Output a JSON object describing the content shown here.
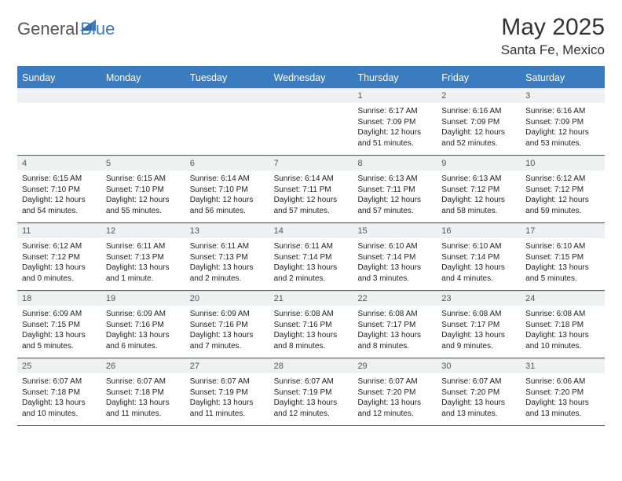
{
  "logo": {
    "text1": "General",
    "text2": "Blue"
  },
  "title": "May 2025",
  "location": "Santa Fe, Mexico",
  "colors": {
    "header_bg": "#3b7bbf",
    "header_border": "#34689e",
    "daynum_bg": "#eef0f1",
    "text": "#222222"
  },
  "dayNames": [
    "Sunday",
    "Monday",
    "Tuesday",
    "Wednesday",
    "Thursday",
    "Friday",
    "Saturday"
  ],
  "weeks": [
    [
      {
        "num": "",
        "sunrise": "",
        "sunset": "",
        "daylight": ""
      },
      {
        "num": "",
        "sunrise": "",
        "sunset": "",
        "daylight": ""
      },
      {
        "num": "",
        "sunrise": "",
        "sunset": "",
        "daylight": ""
      },
      {
        "num": "",
        "sunrise": "",
        "sunset": "",
        "daylight": ""
      },
      {
        "num": "1",
        "sunrise": "Sunrise: 6:17 AM",
        "sunset": "Sunset: 7:09 PM",
        "daylight": "Daylight: 12 hours and 51 minutes."
      },
      {
        "num": "2",
        "sunrise": "Sunrise: 6:16 AM",
        "sunset": "Sunset: 7:09 PM",
        "daylight": "Daylight: 12 hours and 52 minutes."
      },
      {
        "num": "3",
        "sunrise": "Sunrise: 6:16 AM",
        "sunset": "Sunset: 7:09 PM",
        "daylight": "Daylight: 12 hours and 53 minutes."
      }
    ],
    [
      {
        "num": "4",
        "sunrise": "Sunrise: 6:15 AM",
        "sunset": "Sunset: 7:10 PM",
        "daylight": "Daylight: 12 hours and 54 minutes."
      },
      {
        "num": "5",
        "sunrise": "Sunrise: 6:15 AM",
        "sunset": "Sunset: 7:10 PM",
        "daylight": "Daylight: 12 hours and 55 minutes."
      },
      {
        "num": "6",
        "sunrise": "Sunrise: 6:14 AM",
        "sunset": "Sunset: 7:10 PM",
        "daylight": "Daylight: 12 hours and 56 minutes."
      },
      {
        "num": "7",
        "sunrise": "Sunrise: 6:14 AM",
        "sunset": "Sunset: 7:11 PM",
        "daylight": "Daylight: 12 hours and 57 minutes."
      },
      {
        "num": "8",
        "sunrise": "Sunrise: 6:13 AM",
        "sunset": "Sunset: 7:11 PM",
        "daylight": "Daylight: 12 hours and 57 minutes."
      },
      {
        "num": "9",
        "sunrise": "Sunrise: 6:13 AM",
        "sunset": "Sunset: 7:12 PM",
        "daylight": "Daylight: 12 hours and 58 minutes."
      },
      {
        "num": "10",
        "sunrise": "Sunrise: 6:12 AM",
        "sunset": "Sunset: 7:12 PM",
        "daylight": "Daylight: 12 hours and 59 minutes."
      }
    ],
    [
      {
        "num": "11",
        "sunrise": "Sunrise: 6:12 AM",
        "sunset": "Sunset: 7:12 PM",
        "daylight": "Daylight: 13 hours and 0 minutes."
      },
      {
        "num": "12",
        "sunrise": "Sunrise: 6:11 AM",
        "sunset": "Sunset: 7:13 PM",
        "daylight": "Daylight: 13 hours and 1 minute."
      },
      {
        "num": "13",
        "sunrise": "Sunrise: 6:11 AM",
        "sunset": "Sunset: 7:13 PM",
        "daylight": "Daylight: 13 hours and 2 minutes."
      },
      {
        "num": "14",
        "sunrise": "Sunrise: 6:11 AM",
        "sunset": "Sunset: 7:14 PM",
        "daylight": "Daylight: 13 hours and 2 minutes."
      },
      {
        "num": "15",
        "sunrise": "Sunrise: 6:10 AM",
        "sunset": "Sunset: 7:14 PM",
        "daylight": "Daylight: 13 hours and 3 minutes."
      },
      {
        "num": "16",
        "sunrise": "Sunrise: 6:10 AM",
        "sunset": "Sunset: 7:14 PM",
        "daylight": "Daylight: 13 hours and 4 minutes."
      },
      {
        "num": "17",
        "sunrise": "Sunrise: 6:10 AM",
        "sunset": "Sunset: 7:15 PM",
        "daylight": "Daylight: 13 hours and 5 minutes."
      }
    ],
    [
      {
        "num": "18",
        "sunrise": "Sunrise: 6:09 AM",
        "sunset": "Sunset: 7:15 PM",
        "daylight": "Daylight: 13 hours and 5 minutes."
      },
      {
        "num": "19",
        "sunrise": "Sunrise: 6:09 AM",
        "sunset": "Sunset: 7:16 PM",
        "daylight": "Daylight: 13 hours and 6 minutes."
      },
      {
        "num": "20",
        "sunrise": "Sunrise: 6:09 AM",
        "sunset": "Sunset: 7:16 PM",
        "daylight": "Daylight: 13 hours and 7 minutes."
      },
      {
        "num": "21",
        "sunrise": "Sunrise: 6:08 AM",
        "sunset": "Sunset: 7:16 PM",
        "daylight": "Daylight: 13 hours and 8 minutes."
      },
      {
        "num": "22",
        "sunrise": "Sunrise: 6:08 AM",
        "sunset": "Sunset: 7:17 PM",
        "daylight": "Daylight: 13 hours and 8 minutes."
      },
      {
        "num": "23",
        "sunrise": "Sunrise: 6:08 AM",
        "sunset": "Sunset: 7:17 PM",
        "daylight": "Daylight: 13 hours and 9 minutes."
      },
      {
        "num": "24",
        "sunrise": "Sunrise: 6:08 AM",
        "sunset": "Sunset: 7:18 PM",
        "daylight": "Daylight: 13 hours and 10 minutes."
      }
    ],
    [
      {
        "num": "25",
        "sunrise": "Sunrise: 6:07 AM",
        "sunset": "Sunset: 7:18 PM",
        "daylight": "Daylight: 13 hours and 10 minutes."
      },
      {
        "num": "26",
        "sunrise": "Sunrise: 6:07 AM",
        "sunset": "Sunset: 7:18 PM",
        "daylight": "Daylight: 13 hours and 11 minutes."
      },
      {
        "num": "27",
        "sunrise": "Sunrise: 6:07 AM",
        "sunset": "Sunset: 7:19 PM",
        "daylight": "Daylight: 13 hours and 11 minutes."
      },
      {
        "num": "28",
        "sunrise": "Sunrise: 6:07 AM",
        "sunset": "Sunset: 7:19 PM",
        "daylight": "Daylight: 13 hours and 12 minutes."
      },
      {
        "num": "29",
        "sunrise": "Sunrise: 6:07 AM",
        "sunset": "Sunset: 7:20 PM",
        "daylight": "Daylight: 13 hours and 12 minutes."
      },
      {
        "num": "30",
        "sunrise": "Sunrise: 6:07 AM",
        "sunset": "Sunset: 7:20 PM",
        "daylight": "Daylight: 13 hours and 13 minutes."
      },
      {
        "num": "31",
        "sunrise": "Sunrise: 6:06 AM",
        "sunset": "Sunset: 7:20 PM",
        "daylight": "Daylight: 13 hours and 13 minutes."
      }
    ]
  ]
}
